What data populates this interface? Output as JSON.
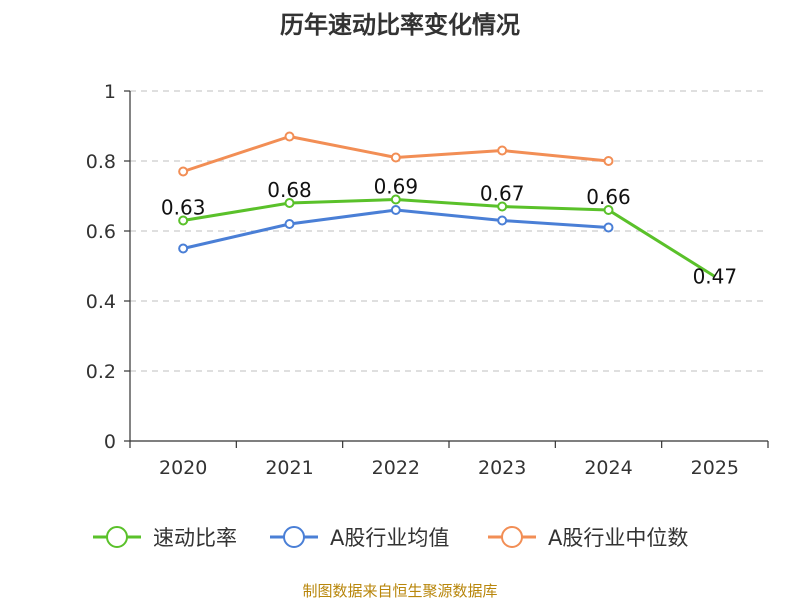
{
  "chart_data": {
    "type": "line",
    "title": "历年速动比率变化情况",
    "categories": [
      "2020",
      "2021",
      "2022",
      "2023",
      "2024",
      "2025"
    ],
    "ylim": [
      0,
      1
    ],
    "yticks": [
      "0",
      "0.2",
      "0.4",
      "0.6",
      "0.8",
      "1"
    ],
    "ytick_values": [
      0,
      0.2,
      0.4,
      0.6,
      0.8,
      1
    ],
    "grid": true,
    "legend_position": "bottom-center",
    "series": [
      {
        "name": "速动比率",
        "color": "#5ac12a",
        "values": [
          0.63,
          0.68,
          0.69,
          0.67,
          0.66,
          0.47
        ],
        "labels": [
          "0.63",
          "0.68",
          "0.69",
          "0.67",
          "0.66",
          "0.47"
        ]
      },
      {
        "name": "A股行业均值",
        "color": "#4a7fd6",
        "values": [
          0.55,
          0.62,
          0.66,
          0.63,
          0.61,
          null
        ]
      },
      {
        "name": "A股行业中位数",
        "color": "#f28e55",
        "values": [
          0.77,
          0.87,
          0.81,
          0.83,
          0.8,
          null
        ]
      }
    ],
    "source": "制图数据来自恒生聚源数据库"
  }
}
